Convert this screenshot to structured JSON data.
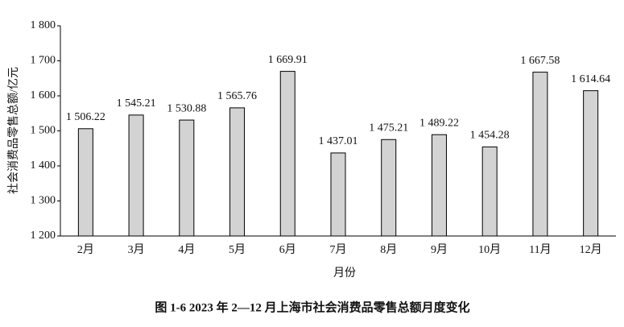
{
  "chart_data": {
    "type": "bar",
    "caption": "图 1-6   2023 年 2—12 月上海市社会消费品零售总额月度变化",
    "x_label": "月份",
    "y_label": "社会消费品零售总额/亿元",
    "categories": [
      "2月",
      "3月",
      "4月",
      "5月",
      "6月",
      "7月",
      "8月",
      "9月",
      "10月",
      "11月",
      "12月"
    ],
    "values": [
      1506.22,
      1545.21,
      1530.88,
      1565.76,
      1669.91,
      1437.01,
      1475.21,
      1489.22,
      1454.28,
      1667.58,
      1614.64
    ],
    "value_labels": [
      "1 506.22",
      "1 545.21",
      "1 530.88",
      "1 565.76",
      "1 669.91",
      "1 437.01",
      "1 475.21",
      "1 489.22",
      "1 454.28",
      "1 667.58",
      "1 614.64"
    ],
    "color": "#d3d3d3",
    "ylim": [
      1200,
      1800
    ],
    "yticks": [
      {
        "value": 1200,
        "label": "1 200"
      },
      {
        "value": 1300,
        "label": "1 300"
      },
      {
        "value": 1400,
        "label": "1 400"
      },
      {
        "value": 1500,
        "label": "1 500"
      },
      {
        "value": 1600,
        "label": "1 600"
      },
      {
        "value": 1700,
        "label": "1 700"
      },
      {
        "value": 1800,
        "label": "1 800"
      }
    ],
    "grid": false
  }
}
